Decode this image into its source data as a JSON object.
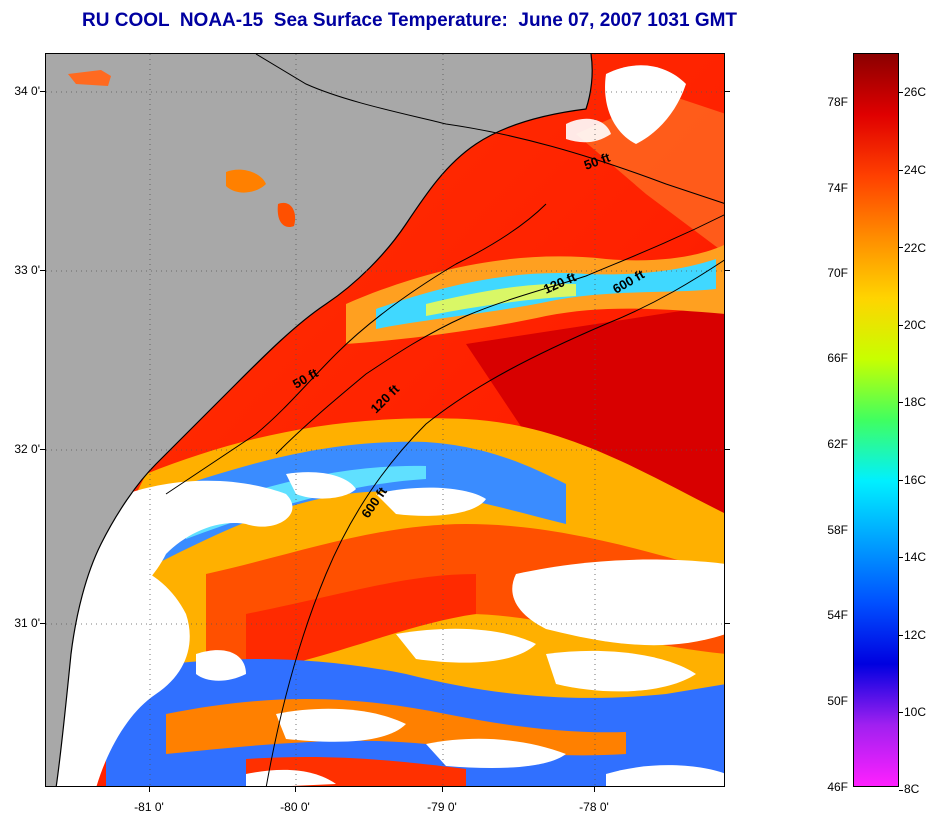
{
  "title": "RU COOL  NOAA-15  Sea Surface Temperature:  June 07, 2007 1031 GMT",
  "latitude_labels": [
    "34 0'",
    "33 0'",
    "32 0'",
    "31 0'"
  ],
  "longitude_labels": [
    "-81 0'",
    "-80 0'",
    "-79 0'",
    "-78 0'"
  ],
  "depth_contours": {
    "shallow_north": "50 ft",
    "shallow_south": "50 ft",
    "mid_north": "120 ft",
    "mid_south": "120 ft",
    "deep_north": "600 ft",
    "deep_south": "600 ft"
  },
  "colorbar": {
    "fahrenheit_labels": [
      "78F",
      "74F",
      "70F",
      "66F",
      "62F",
      "58F",
      "54F",
      "50F",
      "46F"
    ],
    "celsius_labels": [
      "26C",
      "24C",
      "22C",
      "20C",
      "18C",
      "16C",
      "14C",
      "12C",
      "10C",
      "8C"
    ],
    "gradient_colors": [
      "#8b0000",
      "#e00000",
      "#ff4000",
      "#ff8c00",
      "#ffd400",
      "#c8ff00",
      "#40ff60",
      "#00f0ff",
      "#00a0ff",
      "#0050ff",
      "#0000e0",
      "#a020f0",
      "#ff20ff"
    ]
  },
  "colors": {
    "land": "#a8a8a8",
    "cloud": "#ffffff",
    "title": "#0000a0"
  }
}
